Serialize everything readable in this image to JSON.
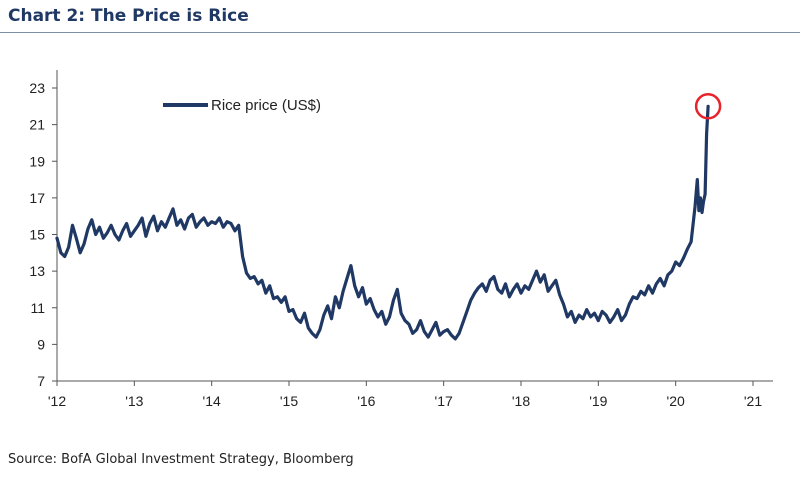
{
  "header": {
    "title": "Chart 2: The Price is Rice"
  },
  "footer": {
    "source": "Source: BofA Global Investment Strategy, Bloomberg"
  },
  "colors": {
    "series": "#1f3864",
    "highlight": "#e8232a"
  },
  "chart_data": {
    "type": "line",
    "title": "Chart 2: The Price is Rice",
    "xlabel": "",
    "ylabel": "",
    "xlim": [
      2012.0,
      2021.0
    ],
    "ylim": [
      7,
      23
    ],
    "xticks": [
      "'12",
      "'13",
      "'14",
      "'15",
      "'16",
      "'17",
      "'18",
      "'19",
      "'20",
      "'21"
    ],
    "yticks": [
      7,
      9,
      11,
      13,
      15,
      17,
      19,
      21,
      23
    ],
    "grid": false,
    "legend": "top-left",
    "annotation": "red circle around the latest peak",
    "series": [
      {
        "name": "Rice price (US$)",
        "x": [
          2012.0,
          2012.05,
          2012.1,
          2012.15,
          2012.2,
          2012.25,
          2012.3,
          2012.35,
          2012.4,
          2012.45,
          2012.5,
          2012.55,
          2012.6,
          2012.65,
          2012.7,
          2012.75,
          2012.8,
          2012.85,
          2012.9,
          2012.95,
          2013.0,
          2013.05,
          2013.1,
          2013.15,
          2013.2,
          2013.25,
          2013.3,
          2013.35,
          2013.4,
          2013.45,
          2013.5,
          2013.55,
          2013.6,
          2013.65,
          2013.7,
          2013.75,
          2013.8,
          2013.85,
          2013.9,
          2013.95,
          2014.0,
          2014.05,
          2014.1,
          2014.15,
          2014.2,
          2014.25,
          2014.3,
          2014.35,
          2014.4,
          2014.45,
          2014.5,
          2014.55,
          2014.6,
          2014.65,
          2014.7,
          2014.75,
          2014.8,
          2014.85,
          2014.9,
          2014.95,
          2015.0,
          2015.05,
          2015.1,
          2015.15,
          2015.2,
          2015.25,
          2015.3,
          2015.35,
          2015.4,
          2015.45,
          2015.5,
          2015.55,
          2015.6,
          2015.65,
          2015.7,
          2015.75,
          2015.8,
          2015.85,
          2015.9,
          2015.95,
          2016.0,
          2016.05,
          2016.1,
          2016.15,
          2016.2,
          2016.25,
          2016.3,
          2016.35,
          2016.4,
          2016.45,
          2016.5,
          2016.55,
          2016.6,
          2016.65,
          2016.7,
          2016.75,
          2016.8,
          2016.85,
          2016.9,
          2016.95,
          2017.0,
          2017.05,
          2017.1,
          2017.15,
          2017.2,
          2017.25,
          2017.3,
          2017.35,
          2017.4,
          2017.45,
          2017.5,
          2017.55,
          2017.6,
          2017.65,
          2017.7,
          2017.75,
          2017.8,
          2017.85,
          2017.9,
          2017.95,
          2018.0,
          2018.05,
          2018.1,
          2018.15,
          2018.2,
          2018.25,
          2018.3,
          2018.35,
          2018.4,
          2018.45,
          2018.5,
          2018.55,
          2018.6,
          2018.65,
          2018.7,
          2018.75,
          2018.8,
          2018.85,
          2018.9,
          2018.95,
          2019.0,
          2019.05,
          2019.1,
          2019.15,
          2019.2,
          2019.25,
          2019.3,
          2019.35,
          2019.4,
          2019.45,
          2019.5,
          2019.55,
          2019.6,
          2019.65,
          2019.7,
          2019.75,
          2019.8,
          2019.85,
          2019.9,
          2019.95,
          2020.0,
          2020.05,
          2020.1,
          2020.15,
          2020.2,
          2020.25,
          2020.28,
          2020.3,
          2020.32,
          2020.34,
          2020.36,
          2020.38,
          2020.4,
          2020.42
        ],
        "values": [
          14.8,
          14.0,
          13.8,
          14.3,
          15.5,
          14.8,
          14.0,
          14.5,
          15.3,
          15.8,
          15.0,
          15.4,
          14.8,
          15.1,
          15.5,
          15.0,
          14.7,
          15.2,
          15.6,
          14.9,
          15.2,
          15.5,
          15.9,
          14.9,
          15.6,
          16.0,
          15.2,
          15.7,
          15.4,
          15.9,
          16.4,
          15.5,
          15.8,
          15.3,
          15.9,
          16.1,
          15.4,
          15.7,
          15.9,
          15.5,
          15.7,
          15.6,
          15.9,
          15.4,
          15.7,
          15.6,
          15.2,
          15.5,
          13.8,
          12.9,
          12.6,
          12.7,
          12.3,
          12.5,
          11.8,
          12.2,
          11.5,
          11.6,
          11.3,
          11.6,
          10.8,
          10.9,
          10.4,
          10.2,
          10.7,
          9.9,
          9.6,
          9.4,
          9.8,
          10.6,
          11.1,
          10.4,
          11.6,
          11.0,
          11.9,
          12.6,
          13.3,
          12.2,
          11.6,
          12.1,
          11.2,
          11.5,
          10.9,
          10.5,
          10.8,
          10.1,
          10.5,
          11.4,
          12.0,
          10.7,
          10.3,
          10.1,
          9.6,
          9.8,
          10.3,
          9.7,
          9.4,
          9.8,
          10.2,
          9.5,
          9.7,
          9.8,
          9.5,
          9.3,
          9.6,
          10.2,
          10.8,
          11.4,
          11.8,
          12.1,
          12.3,
          11.9,
          12.5,
          12.7,
          12.0,
          11.8,
          12.3,
          11.6,
          12.0,
          12.3,
          11.8,
          12.2,
          12.0,
          12.5,
          13.0,
          12.4,
          12.8,
          11.9,
          12.2,
          12.5,
          11.7,
          11.2,
          10.5,
          10.8,
          10.2,
          10.6,
          10.4,
          10.9,
          10.5,
          10.7,
          10.3,
          10.8,
          10.6,
          10.2,
          10.5,
          10.9,
          10.3,
          10.6,
          11.2,
          11.6,
          11.5,
          11.9,
          11.7,
          12.2,
          11.8,
          12.3,
          12.6,
          12.2,
          12.8,
          13.0,
          13.5,
          13.3,
          13.7,
          14.2,
          14.6,
          16.5,
          18.0,
          16.3,
          17.0,
          16.2,
          16.8,
          17.2,
          20.5,
          22.0
        ]
      }
    ]
  }
}
